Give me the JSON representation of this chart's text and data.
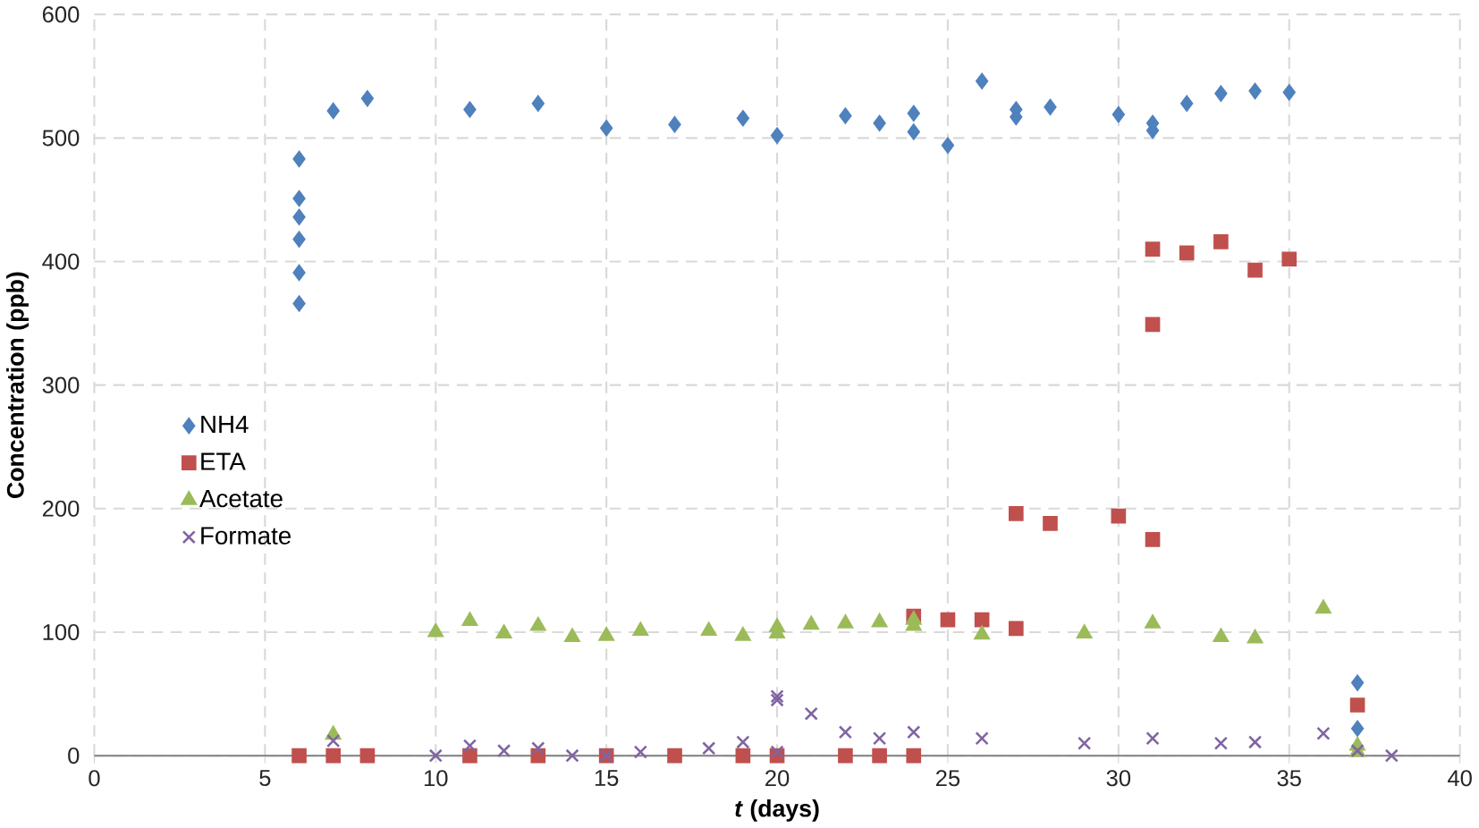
{
  "chart_data": {
    "type": "scatter",
    "xlabel": "*t* (days)",
    "ylabel": "Concentration (ppb)",
    "xlim": [
      0,
      40
    ],
    "ylim": [
      0,
      600
    ],
    "xticks": [
      0,
      5,
      10,
      15,
      20,
      25,
      30,
      35,
      40
    ],
    "yticks": [
      0,
      100,
      200,
      300,
      400,
      500,
      600
    ],
    "grid": true,
    "legend": "left",
    "series": [
      {
        "name": "NH4",
        "color": "#4f81bd",
        "marker": "diamond",
        "x": [
          6,
          6,
          6,
          6,
          6,
          6,
          7,
          8,
          11,
          13,
          15,
          17,
          19,
          20,
          22,
          23,
          24,
          24,
          25,
          26,
          27,
          27,
          28,
          30,
          31,
          31,
          32,
          33,
          34,
          35,
          37,
          37
        ],
        "values": [
          483,
          451,
          436,
          418,
          391,
          366,
          522,
          532,
          523,
          528,
          508,
          511,
          516,
          502,
          518,
          512,
          520,
          505,
          494,
          546,
          523,
          517,
          525,
          519,
          512,
          506,
          528,
          536,
          538,
          537,
          59,
          22
        ]
      },
      {
        "name": "ETA",
        "color": "#c0504d",
        "marker": "square",
        "x": [
          6,
          7,
          8,
          11,
          13,
          15,
          17,
          19,
          20,
          22,
          23,
          24,
          24,
          25,
          26,
          27,
          27,
          28,
          30,
          31,
          31,
          31,
          32,
          33,
          34,
          35,
          37
        ],
        "values": [
          0,
          0,
          0,
          0,
          0,
          0,
          0,
          0,
          0,
          0,
          0,
          0,
          113,
          110,
          110,
          103,
          196,
          188,
          194,
          175,
          410,
          349,
          407,
          416,
          393,
          402,
          41
        ]
      },
      {
        "name": "Acetate",
        "color": "#9bbb59",
        "marker": "triangle",
        "x": [
          7,
          10,
          11,
          12,
          13,
          14,
          15,
          16,
          18,
          19,
          20,
          20,
          21,
          22,
          23,
          24,
          24,
          26,
          29,
          31,
          33,
          34,
          36,
          37,
          37
        ],
        "values": [
          17,
          100,
          109,
          99,
          105,
          96,
          97,
          101,
          101,
          97,
          99,
          104,
          106,
          107,
          108,
          110,
          105,
          98,
          99,
          107,
          96,
          95,
          119,
          8,
          3
        ]
      },
      {
        "name": "Formate",
        "color": "#8064a2",
        "marker": "cross",
        "x": [
          7,
          10,
          11,
          12,
          13,
          14,
          15,
          16,
          18,
          19,
          20,
          20,
          20,
          21,
          22,
          23,
          24,
          26,
          29,
          31,
          33,
          34,
          36,
          37,
          38
        ],
        "values": [
          12,
          0,
          8,
          4,
          6,
          0,
          0,
          3,
          6,
          11,
          3,
          48,
          45,
          34,
          19,
          14,
          19,
          14,
          10,
          14,
          10,
          11,
          18,
          4,
          0
        ]
      }
    ]
  }
}
